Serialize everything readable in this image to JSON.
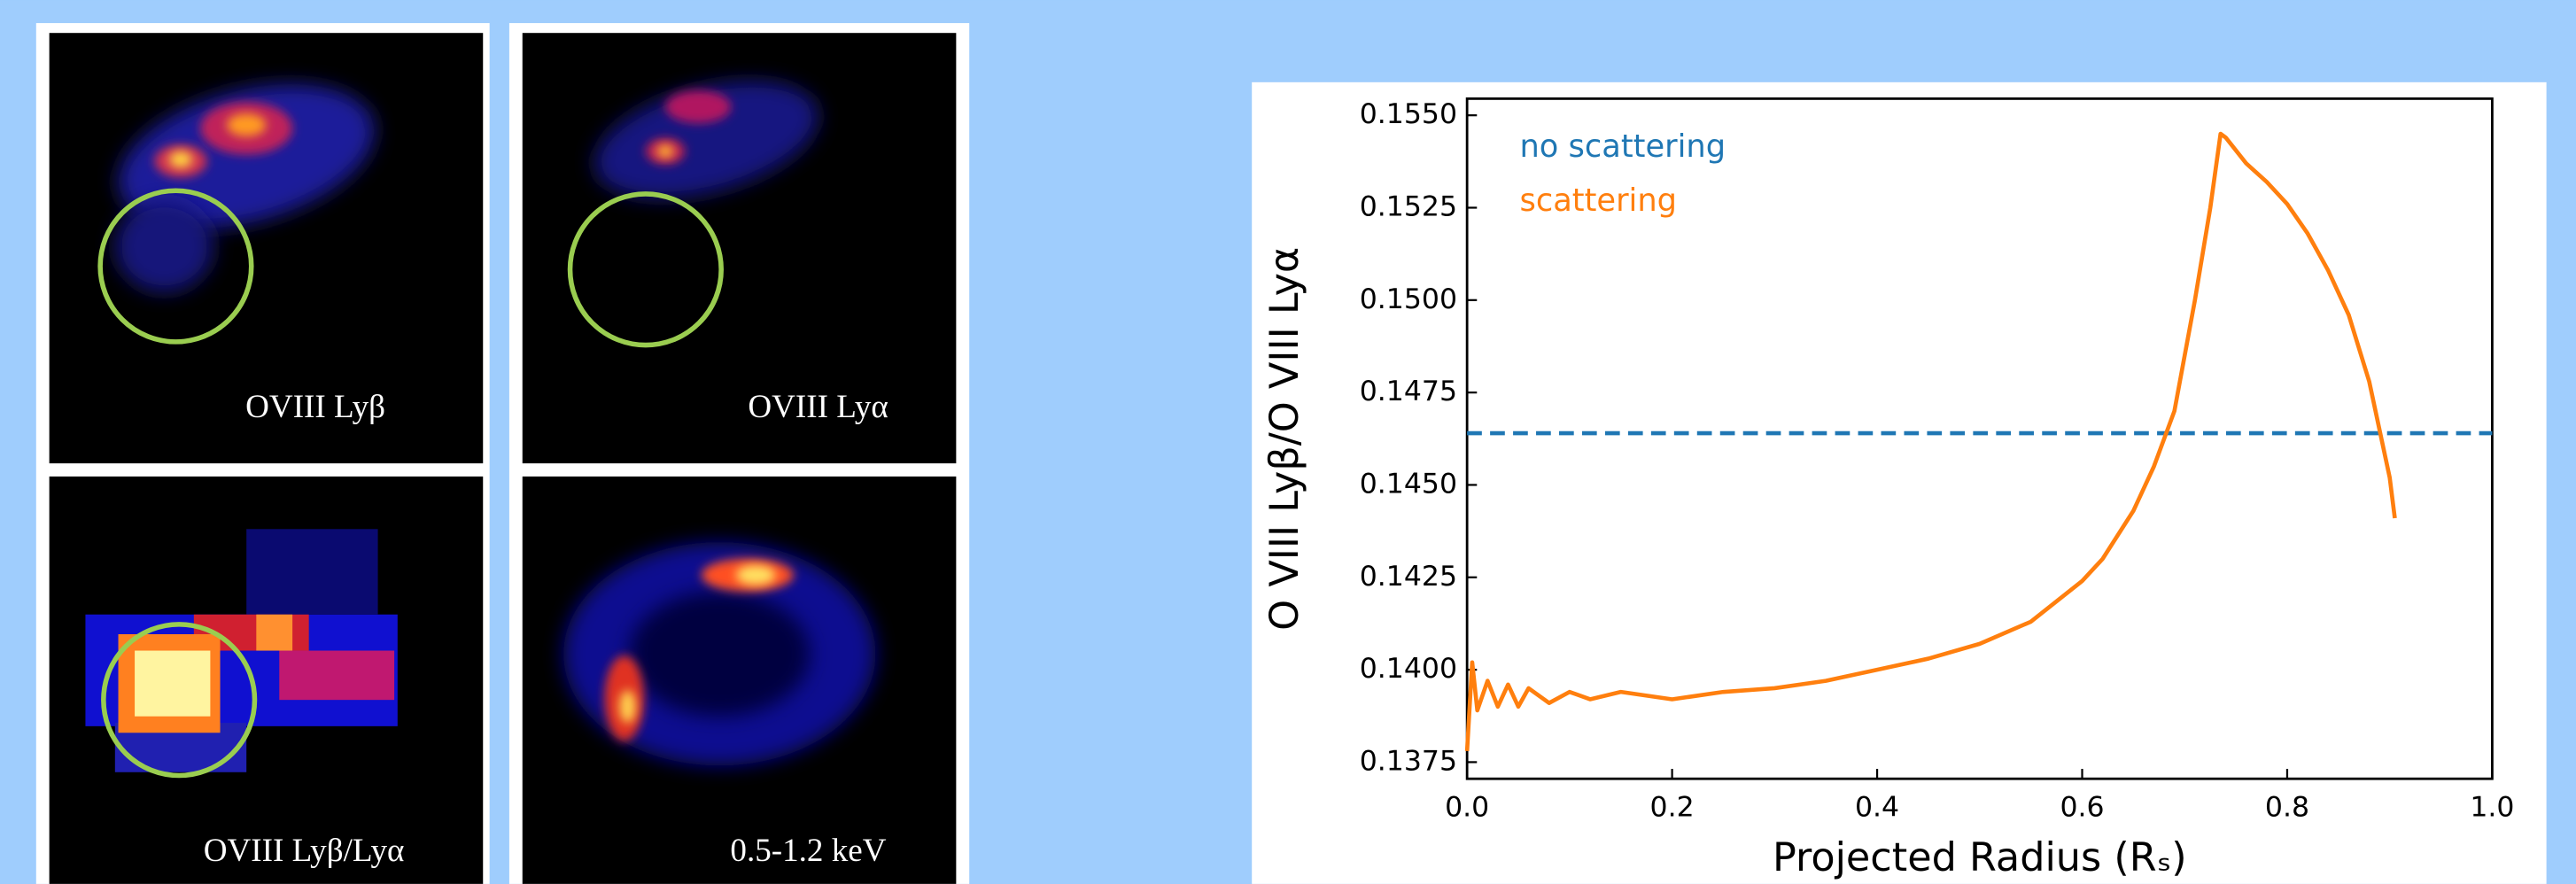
{
  "panels": [
    {
      "label": "OVIII Lyβ"
    },
    {
      "label": "OVIII Lyα"
    },
    {
      "label": "OVIII Lyβ/Lyα"
    },
    {
      "label": "0.5-1.2 keV"
    }
  ],
  "chart_data": {
    "type": "line",
    "x_label": "Projected Radius (Rₛ)",
    "y_label": "O VIII Lyβ/O VIII Lyα",
    "xlim": [
      0,
      1
    ],
    "xticks": [
      {
        "value": 0,
        "label": "0.0"
      },
      0.2,
      0.4,
      0.6,
      0.8,
      {
        "value": 1,
        "label": "1.0"
      }
    ],
    "ylim": [
      0.13705,
      0.15545
    ],
    "yticks": [
      {
        "value": 0.1375,
        "label": "0.1375"
      },
      {
        "value": 0.14,
        "label": "0.1400"
      },
      {
        "value": 0.1425,
        "label": "0.1425"
      },
      {
        "value": 0.145,
        "label": "0.1450"
      },
      {
        "value": 0.1475,
        "label": "0.1475"
      },
      {
        "value": 0.15,
        "label": "0.1500"
      },
      {
        "value": 0.1525,
        "label": "0.1525"
      },
      {
        "value": 0.155,
        "label": "0.1550"
      }
    ],
    "legend": "upper left",
    "series": [
      {
        "name": "no scattering",
        "color": "#1f77b4",
        "dashed": true,
        "x": [
          0,
          1
        ],
        "values": [
          0.1464,
          0.1464
        ]
      },
      {
        "name": "scattering",
        "color": "#ff7f0e",
        "dashed": false,
        "x": [
          0,
          0.005,
          0.01,
          0.02,
          0.03,
          0.04,
          0.05,
          0.06,
          0.08,
          0.1,
          0.12,
          0.15,
          0.2,
          0.25,
          0.3,
          0.35,
          0.4,
          0.45,
          0.5,
          0.55,
          0.6,
          0.62,
          0.65,
          0.67,
          0.69,
          0.71,
          0.725,
          0.735,
          0.74,
          0.76,
          0.78,
          0.8,
          0.82,
          0.84,
          0.86,
          0.88,
          0.9,
          0.905
        ],
        "values": [
          0.1378,
          0.1402,
          0.1389,
          0.1397,
          0.139,
          0.1396,
          0.139,
          0.1395,
          0.1391,
          0.1394,
          0.1392,
          0.1394,
          0.1392,
          0.1394,
          0.1395,
          0.1397,
          0.14,
          0.1403,
          0.1407,
          0.1413,
          0.1424,
          0.143,
          0.1443,
          0.1455,
          0.147,
          0.15,
          0.1525,
          0.1545,
          0.1544,
          0.1537,
          0.1532,
          0.1526,
          0.1518,
          0.1508,
          0.1496,
          0.1478,
          0.1452,
          0.1441
        ]
      }
    ]
  }
}
